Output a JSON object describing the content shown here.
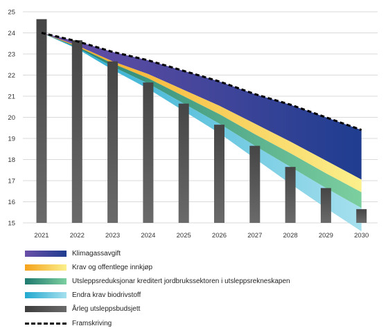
{
  "chart_data": {
    "type": "bar",
    "categories": [
      "2021",
      "2022",
      "2023",
      "2024",
      "2025",
      "2026",
      "2027",
      "2028",
      "2029",
      "2030"
    ],
    "ylim": [
      15,
      25
    ],
    "yticks": [
      15,
      16,
      17,
      18,
      19,
      20,
      21,
      22,
      23,
      24,
      25
    ],
    "grid": true,
    "legend_position": "bottom",
    "budget": {
      "name": "Årleg utsleppsbudsjett",
      "values": [
        24.65,
        23.65,
        22.65,
        21.65,
        20.65,
        19.65,
        18.65,
        17.65,
        16.65,
        15.65
      ]
    },
    "projection": {
      "name": "Framskriving",
      "values": [
        24.0,
        23.6,
        23.1,
        22.7,
        22.2,
        21.7,
        21.1,
        20.6,
        20.0,
        19.4
      ]
    },
    "reductions": [
      {
        "name": "Klimagassavgift",
        "values": [
          0.0,
          0.2,
          0.45,
          0.65,
          0.9,
          1.15,
          1.4,
          1.75,
          2.05,
          2.35
        ]
      },
      {
        "name": "Krav og offentlege innkjøp",
        "values": [
          0.0,
          0.05,
          0.1,
          0.2,
          0.3,
          0.4,
          0.5,
          0.55,
          0.6,
          0.6
        ]
      },
      {
        "name": "Utsleppsreduksjonar kreditert jordbrukssektoren i utsleppsrekneskapen",
        "values": [
          0.0,
          0.05,
          0.15,
          0.25,
          0.35,
          0.45,
          0.55,
          0.65,
          0.7,
          0.75
        ]
      },
      {
        "name": "Endra krav biodrivstoff",
        "values": [
          0.0,
          0.05,
          0.15,
          0.25,
          0.35,
          0.45,
          0.6,
          0.8,
          0.95,
          1.1
        ]
      }
    ]
  },
  "legend": [
    {
      "key": "klimagassavgift",
      "label": "Klimagassavgift"
    },
    {
      "key": "innkjop",
      "label": "Krav og offentlege innkjøp"
    },
    {
      "key": "jordbruk",
      "label": "Utsleppsreduksjonar kreditert jordbrukssektoren i utsleppsrekneskapen"
    },
    {
      "key": "biodrivstoff",
      "label": "Endra krav biodrivstoff"
    },
    {
      "key": "budsjett",
      "label": "Årleg utsleppsbudsjett"
    },
    {
      "key": "framskriving",
      "label": "Framskriving"
    }
  ],
  "colors": {
    "klimagassavgift": [
      "#6a4fa8",
      "#1f3d8f"
    ],
    "innkjop": [
      "#f5a21b",
      "#fbf08c"
    ],
    "jordbruk": [
      "#1e7a6f",
      "#7ccf9f"
    ],
    "biodrivstoff": [
      "#22a9cf",
      "#a6e0ee"
    ],
    "budsjett": [
      "#3d3d3d",
      "#6a6a6a"
    ],
    "grid": "#d9d9d9",
    "axis_text": "#333333"
  }
}
